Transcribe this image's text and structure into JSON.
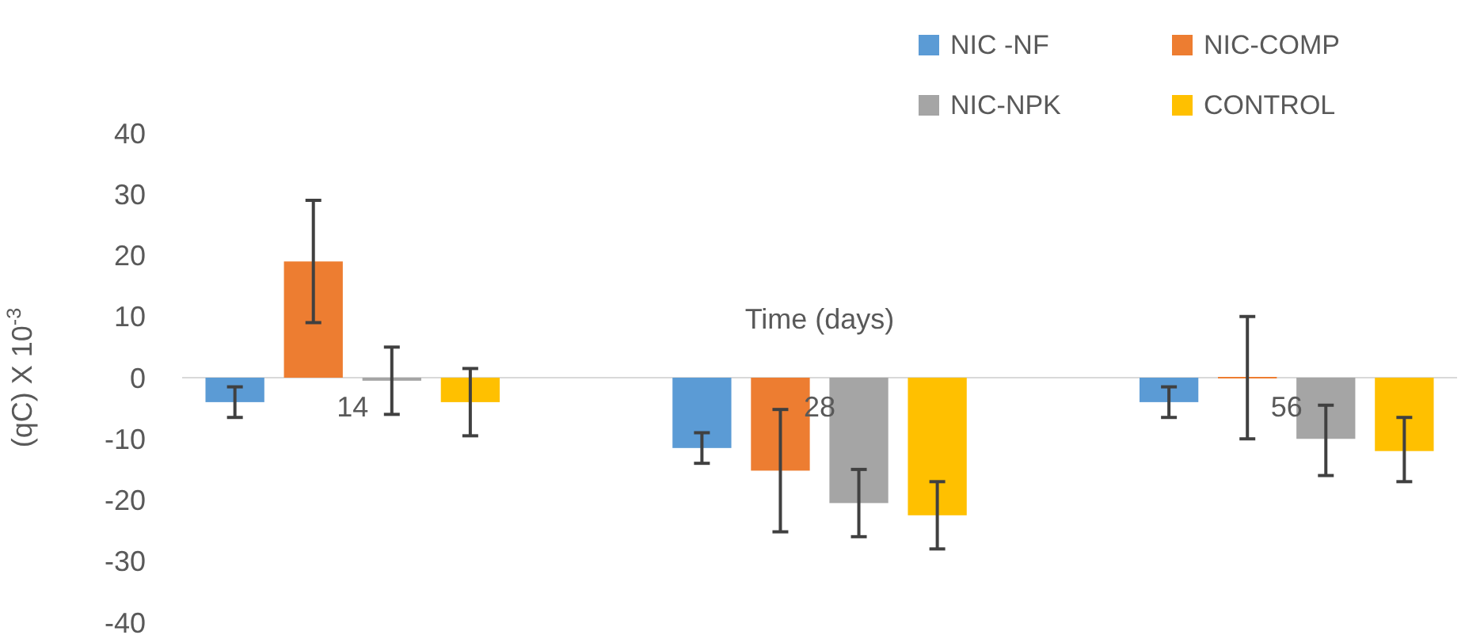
{
  "chart_data": {
    "type": "bar",
    "xlabel": "Time (days)",
    "ylabel": "(qC) X 10$^{-3}$",
    "categories": [
      "14",
      "28",
      "56"
    ],
    "series": [
      {
        "name": "NIC -NF",
        "color": "#5b9bd5",
        "values": [
          -4,
          -11.5,
          -4
        ],
        "errors": [
          [
            -6.5,
            -1.5
          ],
          [
            -14,
            -9
          ],
          [
            -6.5,
            -1.5
          ]
        ]
      },
      {
        "name": "NIC-COMP",
        "color": "#ed7d31",
        "values": [
          19,
          -15.2,
          0
        ],
        "errors": [
          [
            9,
            29
          ],
          [
            -25.2,
            -5.2
          ],
          [
            -10,
            10
          ]
        ]
      },
      {
        "name": "NIC-NPK",
        "color": "#a5a5a5",
        "values": [
          -0.5,
          -20.5,
          -10
        ],
        "errors": [
          [
            -6,
            5
          ],
          [
            -26,
            -15
          ],
          [
            -16,
            -4.5
          ]
        ]
      },
      {
        "name": "CONTROL",
        "color": "#ffc000",
        "values": [
          -4,
          -22.5,
          -12
        ],
        "errors": [
          [
            -9.5,
            1.5
          ],
          [
            -28,
            -17
          ],
          [
            -17,
            -6.5
          ]
        ]
      }
    ],
    "ylim": [
      -40,
      40
    ],
    "yticks": [
      -40,
      -30,
      -20,
      -10,
      0,
      10,
      20,
      30,
      40
    ],
    "legend": "top right"
  }
}
